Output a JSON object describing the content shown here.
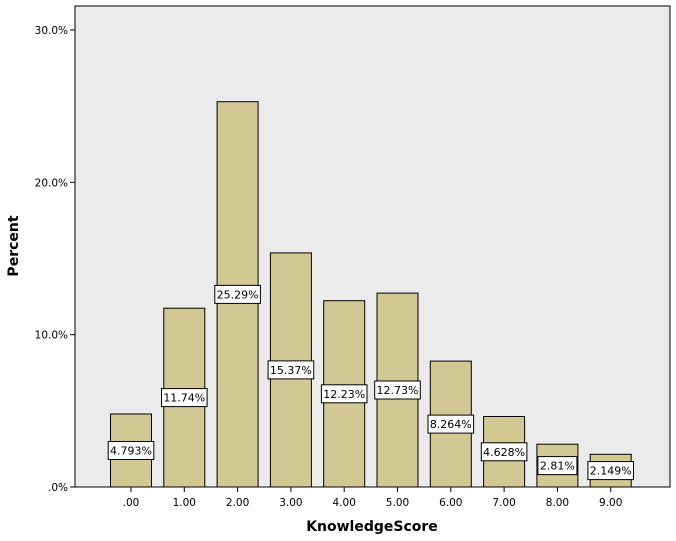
{
  "chart_data": {
    "type": "bar",
    "title": "",
    "xlabel": "KnowledgeScore",
    "ylabel": "Percent",
    "categories": [
      ".00",
      "1.00",
      "2.00",
      "3.00",
      "4.00",
      "5.00",
      "6.00",
      "7.00",
      "8.00",
      "9.00"
    ],
    "values": [
      4.793,
      11.74,
      25.29,
      15.37,
      12.23,
      12.73,
      8.264,
      4.628,
      2.81,
      2.149
    ],
    "data_labels": [
      "4.793%",
      "11.74%",
      "25.29%",
      "15.37%",
      "12.23%",
      "12.73%",
      "8.264%",
      "4.628%",
      "2.81%",
      "2.149%"
    ],
    "ylim": [
      0,
      30
    ],
    "yticks": [
      0,
      10,
      20,
      30
    ],
    "ytick_labels": [
      ".0%",
      "10.0%",
      "20.0%",
      "30.0%"
    ],
    "grid": false,
    "colors": {
      "plot_background": "#ebebeb",
      "bar_fill": "#d2c894",
      "bar_stroke": "#000000"
    }
  }
}
